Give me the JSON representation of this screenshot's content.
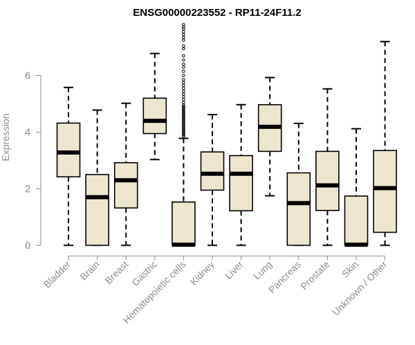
{
  "chart_data": {
    "type": "boxplot",
    "title": "ENSG00000223552 - RP11-24F11.2",
    "ylabel": "Expression",
    "xlabel": "",
    "ylim": [
      0,
      7.5
    ],
    "yticks": [
      0,
      2,
      4,
      6
    ],
    "box_fill": "#ede6cf",
    "axis_color": "#8c8c8c",
    "grid": false,
    "categories": [
      "Bladder",
      "Brain",
      "Breast",
      "Gastric",
      "Hematopoietic cells",
      "Kidney",
      "Liver",
      "Lung",
      "Pancreas",
      "Prostate",
      "Skin",
      "Unknown / Other"
    ],
    "boxes": [
      {
        "min": 0.0,
        "q1": 2.42,
        "median": 3.28,
        "q3": 4.32,
        "max": 5.58,
        "outliers": []
      },
      {
        "min": 0.0,
        "q1": 0.0,
        "median": 1.7,
        "q3": 2.5,
        "max": 4.78,
        "outliers": []
      },
      {
        "min": 0.0,
        "q1": 1.32,
        "median": 2.3,
        "q3": 2.92,
        "max": 5.02,
        "outliers": []
      },
      {
        "min": 3.03,
        "q1": 3.95,
        "median": 4.4,
        "q3": 5.2,
        "max": 6.78,
        "outliers": []
      },
      {
        "min": 0.0,
        "q1": 0.0,
        "median": 0.02,
        "q3": 1.53,
        "max": 3.78,
        "outliers": [
          3.85,
          3.9,
          3.95,
          4.0,
          4.05,
          4.1,
          4.15,
          4.2,
          4.25,
          4.3,
          4.35,
          4.4,
          4.45,
          4.5,
          4.55,
          4.6,
          4.65,
          4.7,
          4.75,
          4.8,
          4.85,
          4.9,
          4.95,
          5.05,
          5.15,
          5.25,
          5.35,
          5.45,
          5.55,
          5.65,
          5.75,
          5.85,
          6.0,
          6.15,
          6.3,
          6.4,
          6.55,
          6.7,
          6.95,
          7.05,
          7.25,
          7.35,
          7.45,
          7.55,
          7.65,
          7.72,
          7.8
        ]
      },
      {
        "min": 0.0,
        "q1": 1.95,
        "median": 2.53,
        "q3": 3.3,
        "max": 4.62,
        "outliers": []
      },
      {
        "min": 0.0,
        "q1": 1.22,
        "median": 2.53,
        "q3": 3.17,
        "max": 4.97,
        "outliers": []
      },
      {
        "min": 1.75,
        "q1": 3.32,
        "median": 4.19,
        "q3": 4.97,
        "max": 5.93,
        "outliers": []
      },
      {
        "min": 0.0,
        "q1": 0.0,
        "median": 1.49,
        "q3": 2.56,
        "max": 4.31,
        "outliers": []
      },
      {
        "min": 0.0,
        "q1": 1.23,
        "median": 2.12,
        "q3": 3.32,
        "max": 5.53,
        "outliers": []
      },
      {
        "min": 0.0,
        "q1": 0.0,
        "median": 0.02,
        "q3": 1.74,
        "max": 4.12,
        "outliers": []
      },
      {
        "min": 0.0,
        "q1": 0.46,
        "median": 2.02,
        "q3": 3.35,
        "max": 7.2,
        "outliers": []
      }
    ]
  }
}
